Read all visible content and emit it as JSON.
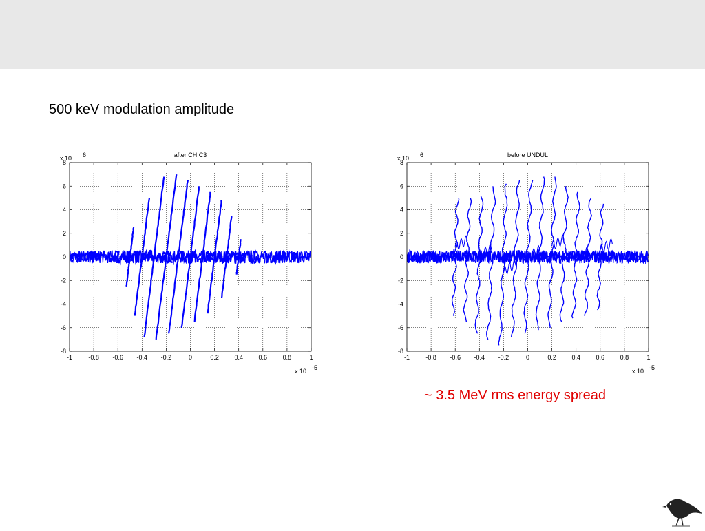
{
  "slide": {
    "heading": "500 keV modulation amplitude",
    "caption": "~ 3.5 MeV rms energy spread"
  },
  "colors": {
    "trace": "#0000ff",
    "caption": "#e00000",
    "band": "#e8e8e8"
  },
  "logo": {
    "icon": "crow-icon"
  },
  "chart_data": [
    {
      "type": "scatter",
      "title": "after CHIC3",
      "xlim": [
        -1,
        1
      ],
      "ylim": [
        -8,
        8
      ],
      "x_multiplier": "x 10",
      "x_multiplier_exp": "-5",
      "y_multiplier": "x 10",
      "y_multiplier_exp": "6",
      "xticks": [
        "-1",
        "-0.8",
        "-0.6",
        "-0.4",
        "-0.2",
        "0",
        "0.2",
        "0.4",
        "0.6",
        "0.8",
        "1"
      ],
      "yticks": [
        "-8",
        "-6",
        "-4",
        "-2",
        "0",
        "2",
        "4",
        "6",
        "8"
      ],
      "grid": true,
      "series": [
        {
          "values_x": [
            -1,
            -0.7,
            -0.6,
            -0.55,
            -0.5,
            -0.45,
            -0.4,
            -0.35,
            -0.3,
            -0.25,
            -0.2,
            -0.15,
            -0.1,
            -0.05,
            0,
            0.05,
            0.1,
            0.15,
            0.2,
            0.25,
            0.3,
            0.35,
            0.4,
            0.45,
            0.5,
            0.55,
            0.6,
            0.7,
            1
          ],
          "values_y": [
            0,
            0,
            0.5,
            1.5,
            2.5,
            3.8,
            5.0,
            6.0,
            6.8,
            7.0,
            7.0,
            6.8,
            6.5,
            6.2,
            6.0,
            5.8,
            5.5,
            5.2,
            4.8,
            4.2,
            3.5,
            2.5,
            1.5,
            0.8,
            0.3,
            0.1,
            0,
            0,
            0
          ],
          "envelope_min": [
            0,
            0,
            -0.5,
            -1.5,
            -2.5,
            -3.8,
            -5.0,
            -6.0,
            -6.8,
            -7.0,
            -7.0,
            -6.8,
            -6.5,
            -6.2,
            -6.0,
            -5.8,
            -5.5,
            -5.2,
            -4.8,
            -4.2,
            -3.5,
            -2.5,
            -1.5,
            -0.8,
            -0.3,
            -0.1,
            0,
            0,
            0
          ]
        }
      ]
    },
    {
      "type": "scatter",
      "title": "before UNDUL",
      "xlim": [
        -1,
        1
      ],
      "ylim": [
        -8,
        8
      ],
      "x_multiplier": "x 10",
      "x_multiplier_exp": "-5",
      "y_multiplier": "x 10",
      "y_multiplier_exp": "6",
      "xticks": [
        "-1",
        "-0.8",
        "-0.6",
        "-0.4",
        "-0.2",
        "0",
        "0.2",
        "0.4",
        "0.6",
        "0.8",
        "1"
      ],
      "yticks": [
        "-8",
        "-6",
        "-4",
        "-2",
        "0",
        "2",
        "4",
        "6",
        "8"
      ],
      "grid": true,
      "series": [
        {
          "values_x": [
            -1,
            -0.8,
            -0.7,
            -0.65,
            -0.6,
            -0.5,
            -0.4,
            -0.3,
            -0.2,
            -0.1,
            0,
            0.1,
            0.2,
            0.3,
            0.4,
            0.5,
            0.6,
            0.65,
            0.7,
            0.8,
            1
          ],
          "values_y": [
            0,
            0,
            1.5,
            4.5,
            5.0,
            5.0,
            5.2,
            6.0,
            6.2,
            6.5,
            6.5,
            6.8,
            6.8,
            6.0,
            5.5,
            5.0,
            4.5,
            4.5,
            1.5,
            0,
            0
          ],
          "envelope_min": [
            0,
            0,
            -1.5,
            -4.5,
            -5.0,
            -5.5,
            -6.5,
            -7.0,
            -7.5,
            -6.8,
            -6.5,
            -6.2,
            -6.0,
            -5.5,
            -5.2,
            -5.0,
            -4.5,
            -4.5,
            -1.5,
            0,
            0
          ]
        }
      ]
    }
  ]
}
